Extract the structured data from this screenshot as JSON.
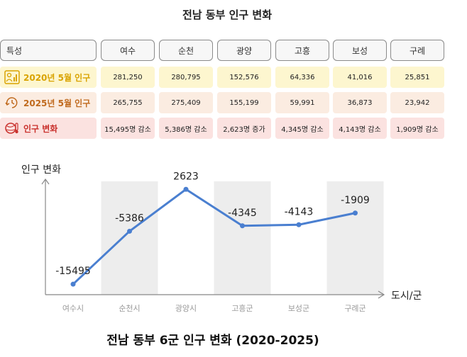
{
  "table": {
    "title": "전남 동부 인구 변화",
    "header": {
      "feature": "특성",
      "regions": [
        "여수",
        "순천",
        "광양",
        "고흥",
        "보성",
        "구례"
      ]
    },
    "rows": [
      {
        "label": "2020년 5월 인구",
        "icon": "people-chart-icon",
        "values": [
          "281,250",
          "280,795",
          "152,576",
          "64,336",
          "41,016",
          "25,851"
        ]
      },
      {
        "label": "2025년 5월 인구",
        "icon": "clock-arrow-icon",
        "values": [
          "265,755",
          "275,409",
          "155,199",
          "59,991",
          "36,873",
          "23,942"
        ]
      },
      {
        "label": "인구 변화",
        "icon": "globe-thermometer-icon",
        "values": [
          "15,495명 감소",
          "5,386명 감소",
          "2,623명 증가",
          "4,345명 감소",
          "4,143명 감소",
          "1,909명 감소"
        ]
      }
    ]
  },
  "colors": {
    "line": "#4a7fd0",
    "band": "#ededed",
    "row2020_bg": "#fdf6cf",
    "row2025_bg": "#fbece1",
    "rowchg_bg": "#fbe2e0"
  },
  "chart_data": {
    "type": "line",
    "title": "전남 동부 6군 인구 변화 (2020-2025)",
    "ylabel": "인구 변화",
    "xlabel": "도시/군",
    "categories": [
      "여수시",
      "순천시",
      "광양시",
      "고흥군",
      "보성군",
      "구례군"
    ],
    "series": [
      {
        "name": "인구 변화",
        "values": [
          -15495,
          -5386,
          2623,
          -4345,
          -4143,
          -1909
        ]
      }
    ],
    "data_labels": [
      "-15495",
      "-5386",
      "2623",
      "-4345",
      "-4143",
      "-1909"
    ],
    "ylim": [
      -17500,
      5500
    ],
    "grid": false
  }
}
